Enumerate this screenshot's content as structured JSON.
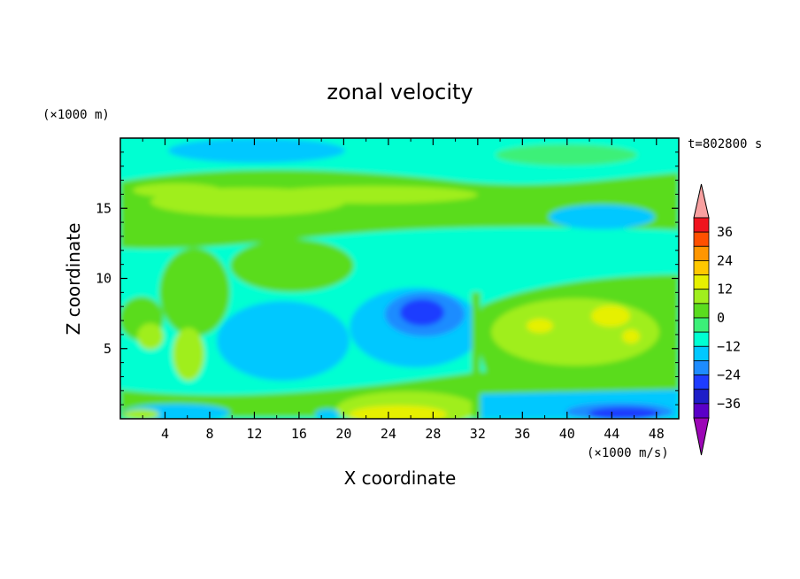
{
  "chart_data": {
    "type": "heatmap",
    "title": "zonal velocity",
    "xlabel": "X coordinate",
    "ylabel": "Z coordinate",
    "y_unit_label": "(×1000 m)",
    "colorbar_unit_label": "(×1000 m/s)",
    "time_label": "t=802800 s",
    "xlim": [
      0,
      50
    ],
    "ylim": [
      0,
      20
    ],
    "x_ticks": [
      "4",
      "8",
      "12",
      "16",
      "20",
      "24",
      "28",
      "32",
      "36",
      "40",
      "44",
      "48"
    ],
    "y_ticks": [
      "5",
      "10",
      "15"
    ],
    "colorbar": {
      "levels": [
        -42,
        -36,
        -30,
        -24,
        -18,
        -12,
        -6,
        0,
        6,
        12,
        18,
        24,
        30,
        36,
        42
      ],
      "labels": [
        "36",
        "24",
        "12",
        "0",
        "−12",
        "−24",
        "−36"
      ],
      "colors": [
        "#9c06b6",
        "#5a00c8",
        "#1e1ec8",
        "#1e3cff",
        "#1e8cff",
        "#00c8ff",
        "#00ffd2",
        "#3cf078",
        "#5adc1e",
        "#a0ee1e",
        "#e6f000",
        "#ffc800",
        "#ff9600",
        "#ff5000",
        "#f0141e",
        "#f8a0a0"
      ]
    },
    "features": [
      {
        "x": 27,
        "z": 7.5,
        "value": -24
      },
      {
        "x": 45,
        "z": 0.5,
        "value": -24
      },
      {
        "x": 15,
        "z": 5.5,
        "value": -12
      },
      {
        "x": 26,
        "z": 0.8,
        "value": 18
      },
      {
        "x": 43,
        "z": 7.0,
        "value": 12
      },
      {
        "x": 15,
        "z": 15.0,
        "value": 12
      },
      {
        "x": 20,
        "z": 19.0,
        "value": -12
      }
    ]
  }
}
